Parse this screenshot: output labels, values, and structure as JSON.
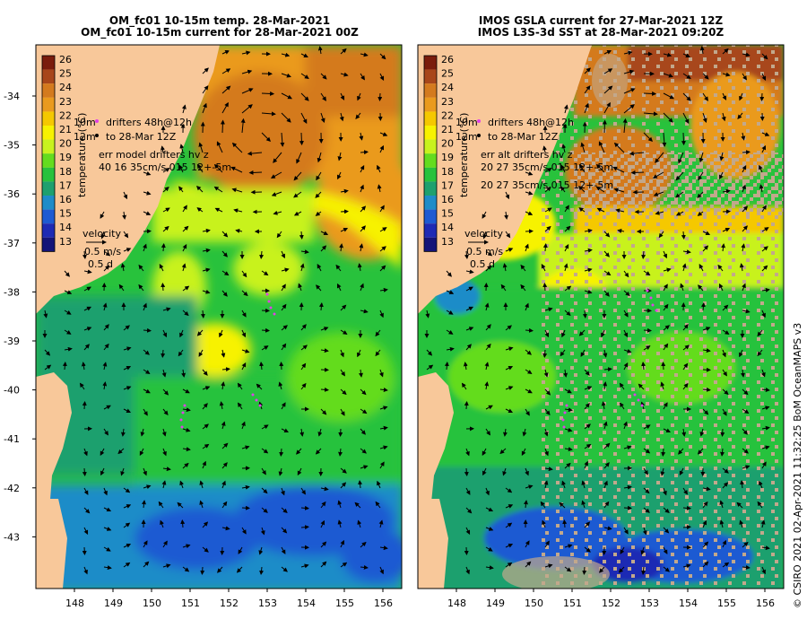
{
  "panels": [
    {
      "id": "left",
      "title_line1": "OM_fc01 10-15m temp. 28-Mar-2021",
      "title_line2": "OM_fc01 10-15m current for 28-Mar-2021 00Z",
      "colorbar_label": "temperature (°C)",
      "legend": {
        "drifters_line1": "drifters 48h@12h",
        "drifters_line2": "to 28-Mar 12Z",
        "err_line1": "err model drifters hv z",
        "err_line2": "40 16 35cm/s 015 12+-5m",
        "velocity_label": "velocity",
        "velocity_scale": "0.5 m/s",
        "velocity_time": "0.5 d",
        "side_label": "10m",
        "side_label2": "12m"
      }
    },
    {
      "id": "right",
      "title_line1": "IMOS GSLA current for 27-Mar-2021 12Z",
      "title_line2": "IMOS L3S-3d SST at 28-Mar-2021 09:20Z",
      "colorbar_label": "temperature (°C)",
      "legend": {
        "drifters_line1": "drifters 48h@12h",
        "drifters_line2": "to 28-Mar 12Z",
        "err_line1": "err alt drifters hv z",
        "err_line2": "20 27 35cm/s 015 12+-5m",
        "err_line3": "20 27 35cm/s 015 12+-5m",
        "velocity_label": "velocity",
        "velocity_scale": "0.5 m/s",
        "velocity_time": "0.5 d",
        "side_label": "10m",
        "side_label2": "12m"
      }
    }
  ],
  "colorbar_ticks": [
    "26",
    "25",
    "24",
    "23",
    "22",
    "21",
    "20",
    "19",
    "18",
    "17",
    "16",
    "15",
    "14",
    "13"
  ],
  "colorbar_colors": [
    "#7a1c0c",
    "#a8461a",
    "#d47a1e",
    "#ea9a1e",
    "#f5c800",
    "#f7f200",
    "#c8f21e",
    "#64dc1e",
    "#28c23c",
    "#1ea06e",
    "#1e8cc8",
    "#1e5ad2",
    "#1e2ab4",
    "#141478"
  ],
  "lat_ticks": [
    "-34",
    "-35",
    "-36",
    "-37",
    "-38",
    "-39",
    "-40",
    "-41",
    "-42",
    "-43"
  ],
  "lon_ticks": [
    "148",
    "149",
    "150",
    "151",
    "152",
    "153",
    "154",
    "155",
    "156"
  ],
  "credit": "© CSIRO 2021   02-Apr-2021 11:32:25 BoM OceanMAPS v3",
  "colors": {
    "land": "#f8c89a",
    "nodata": "#c2a88c",
    "drifter": "#e040e8"
  }
}
